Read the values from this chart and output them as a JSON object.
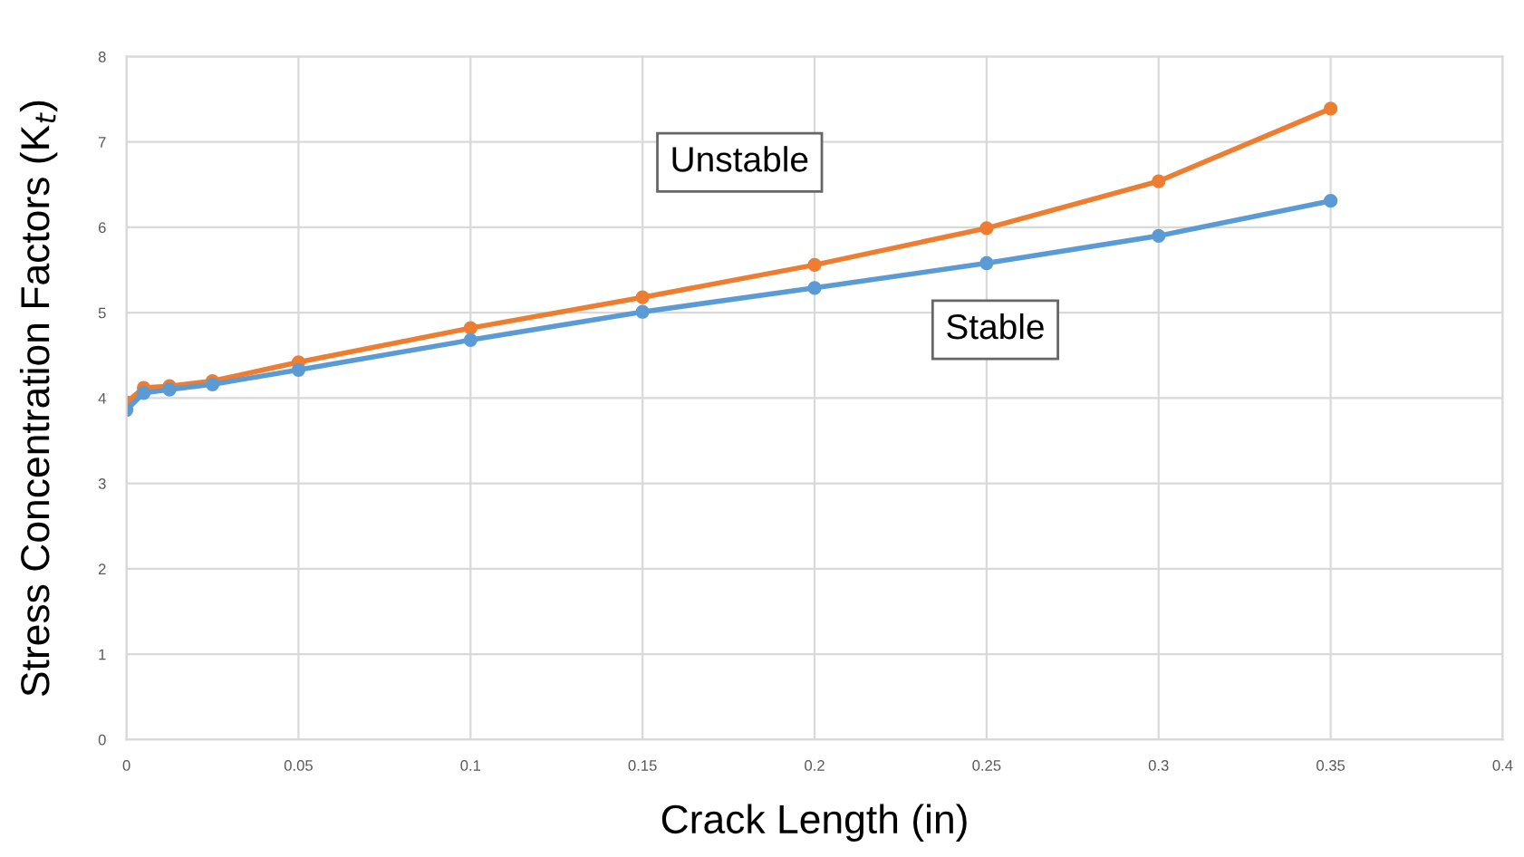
{
  "chart_data": {
    "type": "line",
    "xlabel": "Crack Length (in)",
    "ylabel": "Stress Concentration Factors (K$_{t}$)",
    "x": [
      0,
      0.005,
      0.0125,
      0.025,
      0.05,
      0.1,
      0.15,
      0.2,
      0.25,
      0.3,
      0.35
    ],
    "series": [
      {
        "color": "#ed7d31",
        "values": [
          3.95,
          4.12,
          4.14,
          4.2,
          4.42,
          4.82,
          5.18,
          5.56,
          5.99,
          6.54,
          7.39
        ]
      },
      {
        "color": "#5b9bd5",
        "values": [
          3.86,
          4.06,
          4.1,
          4.16,
          4.33,
          4.68,
          5.01,
          5.29,
          5.58,
          5.9,
          6.31
        ]
      }
    ],
    "annotations": [
      "Unstable",
      "Stable"
    ],
    "xlim": [
      0,
      0.4
    ],
    "xticks": [
      0,
      0.05,
      0.1,
      0.15,
      0.2,
      0.25,
      0.3,
      0.35,
      0.4
    ],
    "ylim": [
      0,
      8
    ],
    "yticks": [
      0,
      1,
      2,
      3,
      4,
      5,
      6,
      7,
      8
    ],
    "grid": true,
    "marker": "circle",
    "line_style": "solid"
  }
}
